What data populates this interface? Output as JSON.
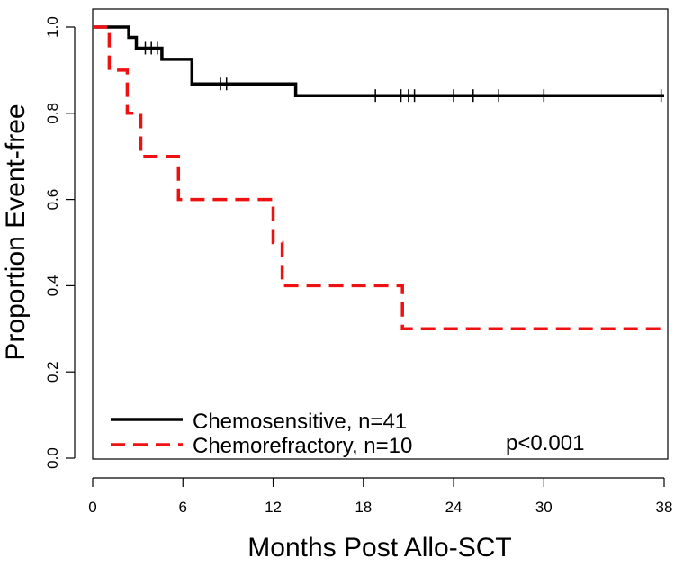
{
  "chart_data": {
    "type": "line",
    "subtype": "kaplan-meier step",
    "xlabel": "Months Post Allo-SCT",
    "ylabel": "Proportion Event-free",
    "xlim": [
      0,
      38
    ],
    "ylim": [
      0,
      1
    ],
    "xticks": [
      0,
      6,
      12,
      18,
      24,
      30,
      38
    ],
    "yticks": [
      0.0,
      0.2,
      0.4,
      0.6,
      0.8,
      1.0
    ],
    "ytick_labels": [
      "0.0",
      "0.2",
      "0.4",
      "0.6",
      "0.8",
      "1.0"
    ],
    "grid": false,
    "legend_position": "bottom-left",
    "annotation": "p<0.001",
    "series": [
      {
        "name": "Chemosensitive, n=41",
        "color": "#000000",
        "style": "solid",
        "steps": [
          [
            0,
            1.0
          ],
          [
            2.4,
            0.976
          ],
          [
            2.9,
            0.951
          ],
          [
            4.6,
            0.925
          ],
          [
            6.6,
            0.868
          ],
          [
            13.5,
            0.841
          ],
          [
            38,
            0.841
          ]
        ],
        "censors": [
          [
            3.5,
            0.951
          ],
          [
            3.9,
            0.951
          ],
          [
            4.3,
            0.951
          ],
          [
            8.5,
            0.868
          ],
          [
            8.9,
            0.868
          ],
          [
            18.8,
            0.841
          ],
          [
            20.5,
            0.841
          ],
          [
            21.0,
            0.841
          ],
          [
            21.4,
            0.841
          ],
          [
            24.0,
            0.841
          ],
          [
            25.3,
            0.841
          ],
          [
            27.0,
            0.841
          ],
          [
            30.0,
            0.841
          ],
          [
            37.8,
            0.841
          ]
        ]
      },
      {
        "name": "Chemorefractory, n=10",
        "color": "#ee1111",
        "style": "dashed",
        "steps": [
          [
            0,
            1.0
          ],
          [
            1.1,
            0.9
          ],
          [
            2.3,
            0.8
          ],
          [
            3.2,
            0.7
          ],
          [
            5.7,
            0.6
          ],
          [
            12.0,
            0.5
          ],
          [
            12.6,
            0.4
          ],
          [
            20.6,
            0.3
          ],
          [
            38,
            0.3
          ]
        ],
        "censors": []
      }
    ]
  }
}
